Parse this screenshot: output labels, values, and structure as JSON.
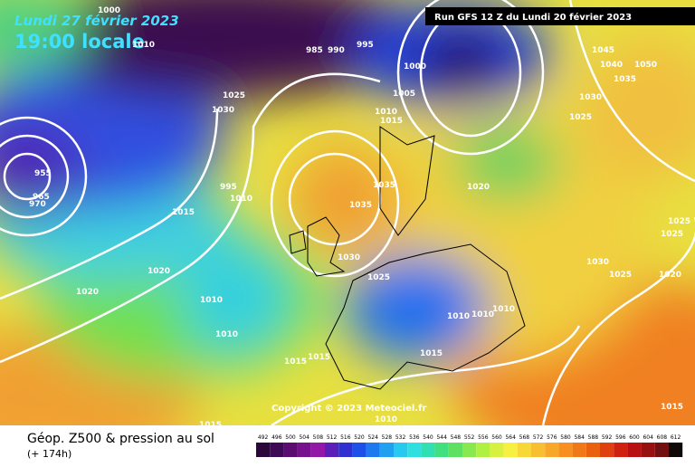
{
  "header": {
    "date": "Lundi 27 février 2023",
    "time": "19:00 locale",
    "run": "Run GFS 12 Z du Lundi 20 février 2023"
  },
  "footer": {
    "title": "Géop. Z500 & pression au sol",
    "lead": "(+ 174h)",
    "copyright": "Copyright © 2023 Meteociel.fr"
  },
  "isobar_labels": [
    "1000",
    "1010",
    "985",
    "990",
    "995",
    "1000",
    "1005",
    "1010",
    "1015",
    "1025",
    "1030",
    "955",
    "965",
    "970",
    "1015",
    "995",
    "1010",
    "1020",
    "1020",
    "1010",
    "1010",
    "1015",
    "1015",
    "1035",
    "1035",
    "1030",
    "1025",
    "1020",
    "1010",
    "1010",
    "1010",
    "1015",
    "1045",
    "1040",
    "1050",
    "1035",
    "1030",
    "1025",
    "1025",
    "1025",
    "1030",
    "1025",
    "1020",
    "1015",
    "1010",
    "1015"
  ],
  "colorbar": {
    "labels": [
      "492",
      "496",
      "500",
      "504",
      "508",
      "512",
      "516",
      "520",
      "524",
      "528",
      "532",
      "536",
      "540",
      "544",
      "548",
      "552",
      "556",
      "560",
      "564",
      "568",
      "572",
      "576",
      "580",
      "584",
      "588",
      "592",
      "596",
      "600",
      "604",
      "608",
      "612"
    ],
    "colors": [
      "#2a0838",
      "#3f0a55",
      "#5a0c70",
      "#76108c",
      "#9418a8",
      "#5a1fb8",
      "#3030d0",
      "#1c50e8",
      "#1e78f0",
      "#20a0f0",
      "#28c8f0",
      "#30e0e0",
      "#30e0b0",
      "#40e080",
      "#60e060",
      "#88e850",
      "#b0f040",
      "#d8f040",
      "#f8f040",
      "#f8d838",
      "#f8c030",
      "#f8a828",
      "#f89020",
      "#f07818",
      "#e86010",
      "#e04010",
      "#d02010",
      "#b81010",
      "#981010",
      "#701010",
      "#100808"
    ]
  }
}
